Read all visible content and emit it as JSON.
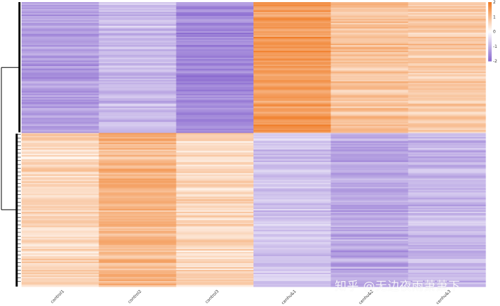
{
  "chart_data": {
    "type": "heatmap",
    "title": "",
    "columns": [
      "control1",
      "control2",
      "control3",
      "cenhu&1",
      "cenhu&2",
      "cenhu&3"
    ],
    "row_clusters": [
      {
        "name": "",
        "column_means": [
          -1.3,
          -0.9,
          -1.6,
          1.5,
          0.9,
          0.8
        ]
      },
      {
        "name": "",
        "column_means": [
          0.6,
          1.1,
          0.6,
          -0.8,
          -1.2,
          -1.0
        ]
      }
    ],
    "cluster_fraction": [
      0.46,
      0.54
    ],
    "legend": {
      "position": "top-right",
      "ticks": [
        "2",
        "1",
        "0",
        "-1",
        "-2"
      ],
      "range": [
        -2,
        2
      ],
      "colors": {
        "high": "#f07a23",
        "mid": "#ffffff",
        "low": "#8b6bd0"
      }
    },
    "dendrogram": "left"
  },
  "watermark": "知乎 @无边夜雨萧萧下"
}
